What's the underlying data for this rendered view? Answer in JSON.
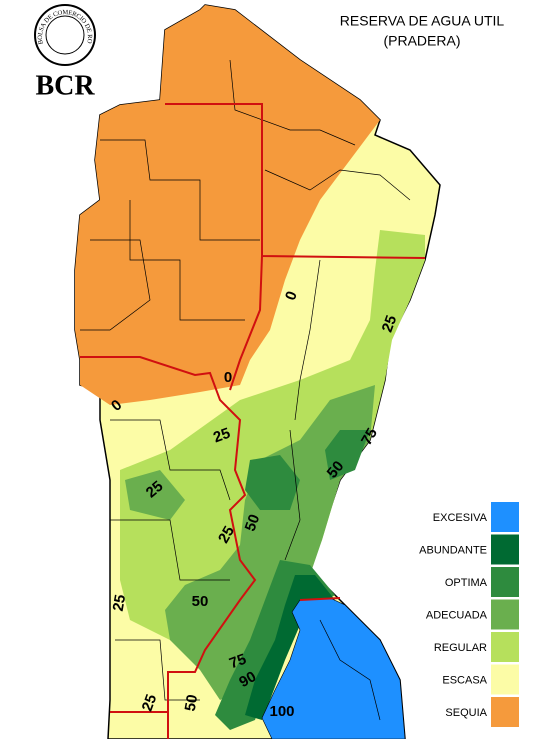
{
  "header": {
    "title": "RESERVA DE AGUA UTIL",
    "subtitle": "(PRADERA)",
    "logo": "BCR",
    "seal_text": "BOLSA DE COMERCIO DE ROSARIO"
  },
  "legend": [
    {
      "label": "EXCESIVA",
      "color": "#1e90ff"
    },
    {
      "label": "ABUNDANTE",
      "color": "#006a32"
    },
    {
      "label": "OPTIMA",
      "color": "#2e8b3e"
    },
    {
      "label": "ADECUADA",
      "color": "#6aaf4e"
    },
    {
      "label": "REGULAR",
      "color": "#b6e05c"
    },
    {
      "label": "ESCASA",
      "color": "#fcfca6"
    },
    {
      "label": "SEQUIA",
      "color": "#f59a3c"
    }
  ],
  "contour_labels": [
    "0",
    "0",
    "0",
    "25",
    "25",
    "25",
    "25",
    "25",
    "25",
    "50",
    "50",
    "50",
    "50",
    "75",
    "75",
    "90",
    "100"
  ]
}
